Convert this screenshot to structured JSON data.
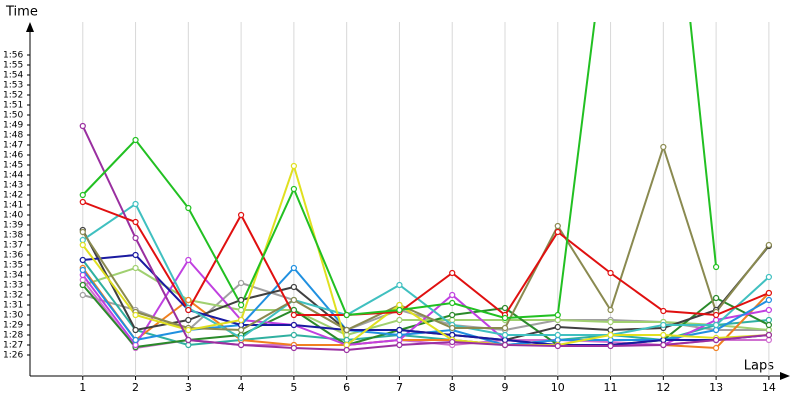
{
  "chart_data": {
    "type": "line",
    "y_title": "Time",
    "x_title": "Laps",
    "x": [
      1,
      2,
      3,
      4,
      5,
      6,
      7,
      8,
      9,
      10,
      11,
      12,
      13,
      14
    ],
    "xlim": [
      0,
      14.4
    ],
    "xticks": [
      1,
      2,
      3,
      4,
      5,
      6,
      7,
      8,
      9,
      10,
      11,
      12,
      13,
      14
    ],
    "ylim": [
      83.9,
      119.3
    ],
    "yticks": [
      {
        "value": 86,
        "label": "1:26"
      },
      {
        "value": 87,
        "label": "1:27"
      },
      {
        "value": 88,
        "label": "1:28"
      },
      {
        "value": 89,
        "label": "1:29"
      },
      {
        "value": 90,
        "label": "1:30"
      },
      {
        "value": 91,
        "label": "1:31"
      },
      {
        "value": 92,
        "label": "1:32"
      },
      {
        "value": 93,
        "label": "1:33"
      },
      {
        "value": 94,
        "label": "1:34"
      },
      {
        "value": 95,
        "label": "1:35"
      },
      {
        "value": 96,
        "label": "1:36"
      },
      {
        "value": 97,
        "label": "1:37"
      },
      {
        "value": 98,
        "label": "1:38"
      },
      {
        "value": 99,
        "label": "1:39"
      },
      {
        "value": 100,
        "label": "1:40"
      },
      {
        "value": 101,
        "label": "1:41"
      },
      {
        "value": 102,
        "label": "1:42"
      },
      {
        "value": 103,
        "label": "1:43"
      },
      {
        "value": 104,
        "label": "1:44"
      },
      {
        "value": 105,
        "label": "1:45"
      },
      {
        "value": 106,
        "label": "1:46"
      },
      {
        "value": 107,
        "label": "1:47"
      },
      {
        "value": 108,
        "label": "1:48"
      },
      {
        "value": 109,
        "label": "1:49"
      },
      {
        "value": 110,
        "label": "1:50"
      },
      {
        "value": 111,
        "label": "1:51"
      },
      {
        "value": 112,
        "label": "1:52"
      },
      {
        "value": 113,
        "label": "1:53"
      },
      {
        "value": 114,
        "label": "1:54"
      },
      {
        "value": 115,
        "label": "1:55"
      },
      {
        "value": 116,
        "label": "1:56"
      }
    ],
    "grid": true,
    "series": [
      {
        "color": "#a0a0a0",
        "values": [
          92,
          90.5,
          88.5,
          93.2,
          91.5,
          88.5,
          90.5,
          89,
          88.5,
          89.5,
          89.5,
          89.3,
          88.5,
          88.5
        ]
      },
      {
        "color": "#a0d070",
        "values": [
          93,
          94.7,
          91.5,
          90.5,
          90.5,
          88,
          89.5,
          89.5,
          89.5,
          89.5,
          89.3,
          89.3,
          89,
          88.5
        ]
      },
      {
        "color": "#30b0a0",
        "values": [
          95.5,
          88.5,
          87,
          87.5,
          88,
          87.5,
          88,
          87.5,
          87,
          87.5,
          88,
          87.5,
          89,
          89.5
        ]
      },
      {
        "color": "#d070d0",
        "values": [
          93.5,
          86.7,
          87.5,
          87,
          87,
          87,
          87.5,
          87,
          87.5,
          87.5,
          87.3,
          87,
          87.5,
          87.5
        ]
      },
      {
        "color": "#f08020",
        "values": [
          94.7,
          87.5,
          91.5,
          87.5,
          87,
          87,
          87.5,
          87.5,
          87,
          87,
          87,
          87,
          86.7,
          92.2
        ]
      },
      {
        "color": "#2a8a2a",
        "values": [
          93,
          86.8,
          87.5,
          88,
          90.5,
          87,
          88.5,
          90,
          90.7,
          87,
          87,
          87.5,
          91.7,
          89
        ]
      },
      {
        "color": "#c040e0",
        "values": [
          94,
          87,
          95.5,
          89.5,
          89,
          87,
          87.5,
          92,
          87.5,
          87,
          87,
          87,
          89.5,
          90.5
        ]
      },
      {
        "color": "#2090e0",
        "values": [
          94.5,
          87.5,
          88.5,
          89,
          94.7,
          88.5,
          88,
          88.5,
          87,
          87.5,
          87.5,
          87.5,
          88.5,
          91.5
        ]
      },
      {
        "color": "#404040",
        "values": [
          98.5,
          88.5,
          89.5,
          91.5,
          92.8,
          88.5,
          88.5,
          88,
          87.5,
          88.8,
          88.5,
          88.7,
          90.5,
          96.9
        ]
      },
      {
        "color": "#1a1aa0",
        "values": [
          95.5,
          96,
          90.5,
          89,
          89,
          88.5,
          88.5,
          88,
          87.5,
          87,
          87,
          87.5,
          87.5,
          88
        ]
      },
      {
        "color": "#40c0c0",
        "values": [
          97.5,
          101.1,
          90.7,
          87.7,
          91.5,
          90,
          93,
          89,
          88,
          88,
          88,
          89,
          89,
          93.8
        ]
      },
      {
        "color": "#8a8a50",
        "values": [
          98.3,
          90.3,
          88.7,
          88.5,
          91.5,
          88.5,
          91,
          88.7,
          88.7,
          98.9,
          90.5,
          106.8,
          90.3,
          97
        ]
      },
      {
        "color": "#e0e020",
        "values": [
          97,
          90,
          88.5,
          89.5,
          104.9,
          87,
          91,
          87.5,
          87,
          87,
          88,
          88,
          87.7,
          88
        ]
      },
      {
        "color": "#9a2fa0",
        "values": [
          108.9,
          97.7,
          87.5,
          87,
          86.7,
          86.5,
          87,
          87.3,
          87,
          86.9,
          86.9,
          87,
          87.5,
          88
        ]
      },
      {
        "color": "#e01010",
        "values": [
          101.3,
          99.3,
          90.5,
          100,
          90,
          90,
          90.3,
          94.2,
          90,
          98.3,
          94.2,
          90.4,
          90,
          92.2
        ]
      },
      {
        "color": "#22c022",
        "values": [
          102,
          107.5,
          100.7,
          91,
          102.6,
          90,
          90.5,
          91.2,
          89.7,
          90,
          132,
          145,
          94.8,
          null
        ]
      }
    ]
  }
}
